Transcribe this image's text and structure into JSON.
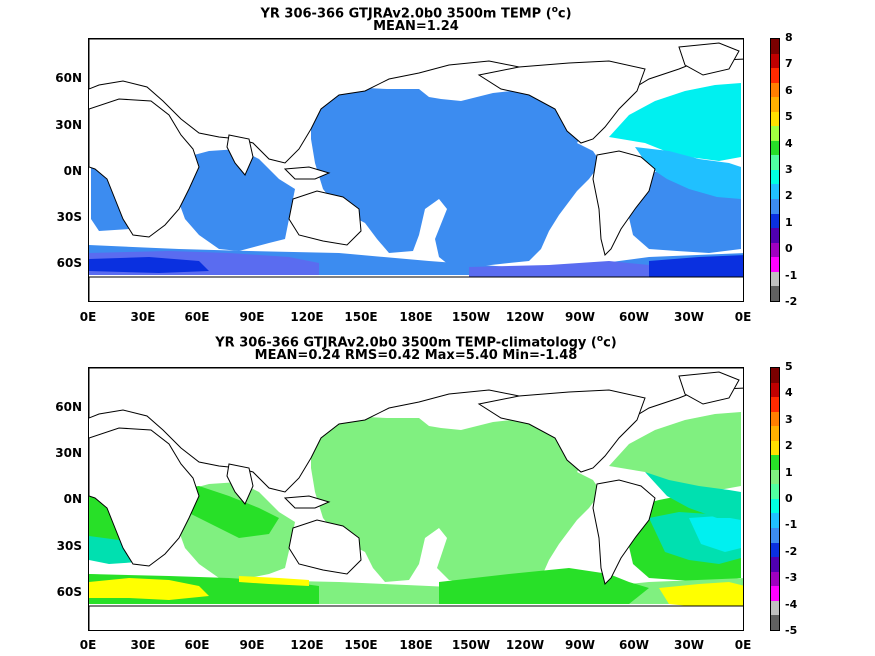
{
  "panels": [
    {
      "title_line1_prefix": "YR 306-366 GTJRAv2.0b0 3500m TEMP (",
      "title_unit_sup": "o",
      "title_unit_rest": "c)",
      "title_line2": "MEAN=1.24",
      "colorbar_ticks": [
        "8",
        "7",
        "6",
        "5",
        "4",
        "3",
        "2",
        "1",
        "0",
        "-1",
        "-2"
      ],
      "colorbar_colors": [
        "#7a0000",
        "#c00000",
        "#ff2a00",
        "#ff7f00",
        "#ffb000",
        "#ffe000",
        "#a0ff40",
        "#28e028",
        "#50ffa0",
        "#00ffe0",
        "#20c0ff",
        "#3c8cf0",
        "#0a30e0",
        "#5000b0",
        "#a000c0",
        "#ff00ff",
        "#c0c0c0",
        "#606060"
      ],
      "palette": {
        "base": "#3c8cf0",
        "cyan": "#00f0f0",
        "aqua": "#20c0ff",
        "deep": "#0a30e0",
        "mid": "#5a6cf0",
        "magenta": "#ff00ff",
        "grey": "#c0c0c0"
      }
    },
    {
      "title_line1_prefix": "YR 306-366 GTJRAv2.0b0 3500m TEMP-climatology (",
      "title_unit_sup": "o",
      "title_unit_rest": "c)",
      "title_line2": "MEAN=0.24   RMS=0.42   Max=5.40   Min=-1.48",
      "colorbar_ticks": [
        "5",
        "4",
        "3",
        "2",
        "1",
        "0",
        "-1",
        "-2",
        "-3",
        "-4",
        "-5"
      ],
      "colorbar_colors": [
        "#7a0000",
        "#c00000",
        "#ff2a00",
        "#ff7f00",
        "#ffb000",
        "#ffe000",
        "#28e028",
        "#80f080",
        "#50ffa0",
        "#00ffe0",
        "#20c0ff",
        "#3c8cf0",
        "#0a30e0",
        "#5000b0",
        "#a000c0",
        "#ff00ff",
        "#c0c0c0",
        "#606060"
      ],
      "palette": {
        "base": "#80f080",
        "green": "#28e028",
        "cyan": "#00f0f0",
        "teal": "#00e0b0",
        "yellow": "#ffff00",
        "aqua": "#20c0ff"
      }
    }
  ],
  "lat_labels": [
    "60N",
    "30N",
    "0N",
    "30S",
    "60S"
  ],
  "lon_labels": [
    "0E",
    "30E",
    "60E",
    "90E",
    "120E",
    "150E",
    "180E",
    "150W",
    "120W",
    "90W",
    "60W",
    "30W",
    "0E"
  ]
}
